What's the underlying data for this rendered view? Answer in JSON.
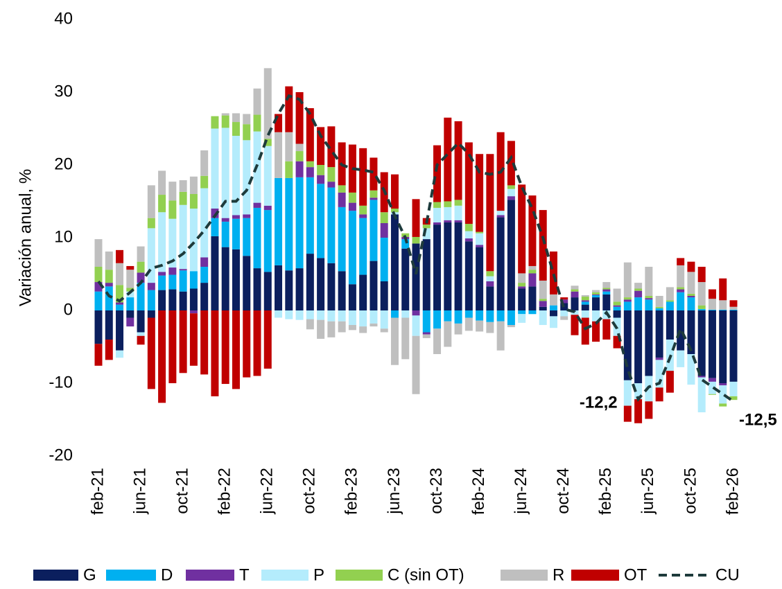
{
  "chart_data": {
    "type": "bar",
    "stacked": true,
    "y_label": "Variación anual, %",
    "ylim": [
      -20,
      40
    ],
    "yticks": [
      -20,
      -10,
      0,
      10,
      20,
      30,
      40
    ],
    "categories": [
      "feb-21",
      null,
      null,
      null,
      "jun-21",
      null,
      null,
      null,
      "oct-21",
      null,
      null,
      null,
      "feb-22",
      null,
      null,
      null,
      "jun-22",
      null,
      null,
      null,
      "oct-22",
      null,
      null,
      null,
      "feb-23",
      null,
      null,
      null,
      "jun-23",
      null,
      null,
      null,
      "oct-23",
      null,
      null,
      null,
      "feb-24",
      null,
      null,
      null,
      "jun-24",
      null,
      null,
      null,
      "oct-24",
      null,
      null,
      null,
      "feb-25",
      null,
      null,
      null,
      "jun-25",
      null,
      null,
      null,
      "oct-25",
      null,
      null,
      null,
      "feb-26"
    ],
    "series": [
      {
        "name": "G",
        "color": "#0b1f5e",
        "values": [
          -4.6,
          -4.0,
          -5.5,
          -1.0,
          -3.0,
          -1.0,
          2.8,
          2.9,
          2.6,
          3.0,
          3.8,
          10.2,
          8.7,
          8.4,
          7.5,
          5.8,
          5.3,
          6.2,
          5.5,
          5.8,
          7.8,
          7.2,
          6.5,
          5.4,
          3.6,
          4.9,
          6.8,
          4.0,
          13.2,
          8.5,
          9.2,
          9.8,
          11.8,
          12.1,
          12.1,
          9.5,
          8.7,
          3.3,
          12.8,
          15.2,
          3.0,
          3.3,
          0.5,
          -0.8,
          1.0,
          1.8,
          0.8,
          1.8,
          2.2,
          -1.0,
          -9.6,
          -10.0,
          -9.0,
          -6.5,
          -4.0,
          -5.5,
          -6.0,
          -9.0,
          -9.3,
          -10.0,
          -9.8
        ]
      },
      {
        "name": "D",
        "color": "#00b0f0",
        "values": [
          2.6,
          3.3,
          0.8,
          1.8,
          3.8,
          2.8,
          2.0,
          2.0,
          2.9,
          2.4,
          2.2,
          2.5,
          3.5,
          4.2,
          5.2,
          8.3,
          8.5,
          12.0,
          12.7,
          12.5,
          10.5,
          10.2,
          10.4,
          8.8,
          10.1,
          7.8,
          8.4,
          6.0,
          -1.0,
          1.3,
          0,
          -3.0,
          -2.5,
          -1.5,
          -1.8,
          -1.0,
          -1.4,
          -1.6,
          -1.5,
          -2.0,
          -0.5,
          -0.5,
          0,
          0.7,
          0,
          0,
          0.4,
          0.3,
          0.4,
          0.5,
          1.2,
          1.8,
          1.5,
          0.3,
          1.2,
          2.5,
          1.8,
          0.2,
          0.1,
          0.1,
          0.1
        ]
      },
      {
        "name": "T",
        "color": "#7030a0",
        "values": [
          1.3,
          0.5,
          0.3,
          -1.2,
          1.4,
          1.0,
          0.5,
          1.0,
          0.2,
          -0.4,
          1.3,
          1.3,
          0.5,
          0.5,
          0.5,
          0.7,
          0.6,
          0,
          0,
          2.2,
          1.4,
          1.2,
          0.8,
          2.0,
          1.1,
          0.5,
          0.3,
          2.0,
          0,
          0.3,
          -0.7,
          -0.3,
          0.3,
          0.3,
          0.3,
          0.4,
          0.3,
          0.7,
          0.3,
          0.5,
          0.3,
          1.8,
          0.8,
          0,
          0.5,
          0.8,
          0.2,
          0.1,
          0.3,
          0.2,
          0.3,
          0.9,
          0.2,
          -0.3,
          0,
          0.4,
          0.2,
          -0.2,
          -0.5,
          -0.3,
          0
        ]
      },
      {
        "name": "P",
        "color": "#b4ecfc",
        "values": [
          0,
          0,
          -1.0,
          0.8,
          -0.5,
          7.5,
          8.2,
          6.7,
          8.8,
          8.6,
          9.5,
          11.0,
          12.4,
          10.9,
          10.2,
          9.8,
          8.2,
          -1.0,
          -1.2,
          -1.3,
          -1.2,
          -1.3,
          -1.5,
          -1.5,
          -2.0,
          -2.2,
          -1.8,
          -2.5,
          0.3,
          -1.0,
          -2.8,
          1.5,
          2.0,
          1.8,
          2.0,
          1.0,
          1.6,
          0.7,
          0.6,
          1.0,
          -1.2,
          0,
          -2.0,
          -1.6,
          -0.8,
          -0.6,
          -1.0,
          -1.5,
          -1.2,
          -2.5,
          -3.5,
          -2.2,
          -3.5,
          -3.8,
          -4.3,
          -2.3,
          -4.2,
          -4.8,
          -1.7,
          -2.5,
          -2.0
        ]
      },
      {
        "name": "C (sin OT)",
        "color": "#92d050",
        "values": [
          2.1,
          1.8,
          2.4,
          0.5,
          1.5,
          1.4,
          2.4,
          2.5,
          1.8,
          2.0,
          1.7,
          1.7,
          1.7,
          1.9,
          2.2,
          2.3,
          1.0,
          0,
          2.3,
          1.4,
          0.8,
          1.4,
          2.0,
          1.0,
          1.4,
          1.2,
          1.0,
          1.5,
          0.5,
          0.5,
          0.9,
          0.5,
          0.8,
          0.8,
          0.8,
          1.0,
          0.2,
          0.7,
          0,
          0.5,
          0.5,
          0.5,
          0.3,
          0,
          0,
          0.3,
          0.5,
          0.3,
          0.2,
          0.5,
          0.3,
          0.3,
          0.3,
          0.2,
          0.2,
          0.3,
          0.3,
          0.5,
          -0.1,
          -0.4,
          -0.5
        ]
      },
      {
        "name": "R",
        "color": "#bfbfbf",
        "values": [
          3.8,
          2.5,
          3.0,
          2.5,
          2.1,
          4.5,
          3.3,
          2.6,
          1.6,
          2.4,
          3.5,
          0,
          0.3,
          1.2,
          1.4,
          3.6,
          9.7,
          6.3,
          4.0,
          1.0,
          -1.4,
          -2.6,
          -2.2,
          -1.5,
          -0.7,
          -0.9,
          -0.4,
          -0.5,
          -6.5,
          -5.7,
          -8.0,
          -0.5,
          -3.5,
          -3.5,
          -1.5,
          -1.8,
          -1.5,
          -1.5,
          -4.0,
          -0.3,
          1.3,
          0.5,
          2.5,
          1.5,
          -0.5,
          0.5,
          0.2,
          0.3,
          0.8,
          1.8,
          4.8,
          0.8,
          4.0,
          1.5,
          1.8,
          3.0,
          3.0,
          3.2,
          1.5,
          1.3,
          0.4
        ]
      },
      {
        "name": "OT",
        "color": "#c00000",
        "values": [
          -3.0,
          -2.8,
          1.8,
          0.5,
          -1.2,
          -9.8,
          -12.7,
          -10.0,
          -8.6,
          -7.2,
          -8.8,
          -11.8,
          -10.1,
          -10.8,
          -9.2,
          -9.0,
          -8.0,
          2.5,
          6.3,
          7.1,
          7.3,
          5.2,
          5.6,
          5.9,
          6.6,
          7.9,
          4.5,
          5.5,
          4.7,
          0,
          5.2,
          0.9,
          7.8,
          11.5,
          10.8,
          11.2,
          10.7,
          16.1,
          10.8,
          6.1,
          12.2,
          9.7,
          9.7,
          5.9,
          0.3,
          -2.8,
          -3.7,
          -2.8,
          -2.8,
          -1.7,
          -2.2,
          -3.3,
          -2.4,
          -1.9,
          -3.0,
          1.0,
          1.4,
          2.1,
          1.3,
          3.0,
          0.9
        ]
      },
      {
        "name": "CU",
        "type": "line",
        "line_style": "dashed",
        "color": "#1e3b3c",
        "values": [
          4.0,
          2.0,
          1.3,
          2.5,
          3.8,
          5.8,
          6.2,
          6.8,
          7.8,
          9.3,
          11.0,
          13.0,
          15.0,
          15.0,
          16.5,
          20.0,
          24.0,
          27.0,
          29.5,
          29.0,
          27.0,
          24.0,
          22.0,
          20.0,
          19.5,
          19.3,
          19.0,
          16.5,
          13.0,
          10.0,
          5.0,
          12.0,
          20.0,
          21.5,
          23.0,
          21.5,
          19.0,
          18.7,
          19.0,
          21.0,
          17.0,
          14.0,
          10.0,
          5.0,
          0.2,
          -0.2,
          -2.5,
          -1.8,
          -0.3,
          -2.5,
          -8.0,
          -12.2,
          -10.5,
          -10.0,
          -6.5,
          -2.5,
          -5.5,
          -9.5,
          -10.5,
          -11.5,
          -12.5
        ],
        "value_labels": [
          null,
          null,
          null,
          null,
          null,
          null,
          null,
          null,
          null,
          null,
          null,
          null,
          null,
          null,
          null,
          null,
          null,
          null,
          null,
          null,
          null,
          null,
          null,
          null,
          null,
          null,
          null,
          null,
          null,
          null,
          null,
          null,
          null,
          null,
          null,
          null,
          null,
          null,
          null,
          null,
          null,
          null,
          null,
          null,
          null,
          null,
          null,
          null,
          null,
          null,
          null,
          "-12,2",
          null,
          null,
          null,
          null,
          null,
          null,
          null,
          null,
          "-12,5"
        ]
      }
    ]
  }
}
